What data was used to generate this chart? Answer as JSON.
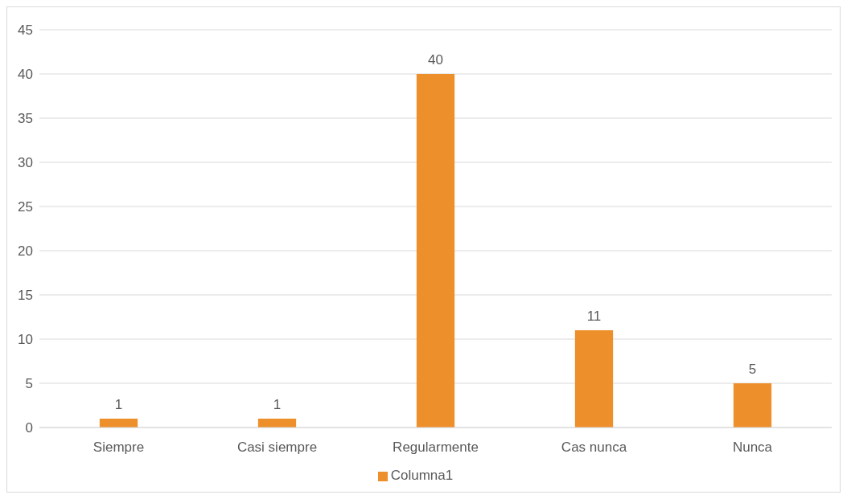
{
  "chart_data": {
    "type": "bar",
    "categories": [
      "Siempre",
      "Casi siempre",
      "Regularmente",
      "Cas nunca",
      "Nunca"
    ],
    "series": [
      {
        "name": "Columna1",
        "color": "#ed8f2a",
        "values": [
          1,
          1,
          40,
          11,
          5
        ]
      }
    ],
    "ylim": [
      0,
      45
    ],
    "yticks": [
      0,
      5,
      10,
      15,
      20,
      25,
      30,
      35,
      40,
      45
    ],
    "grid": "y",
    "legend": "bottom",
    "data_labels": true
  }
}
